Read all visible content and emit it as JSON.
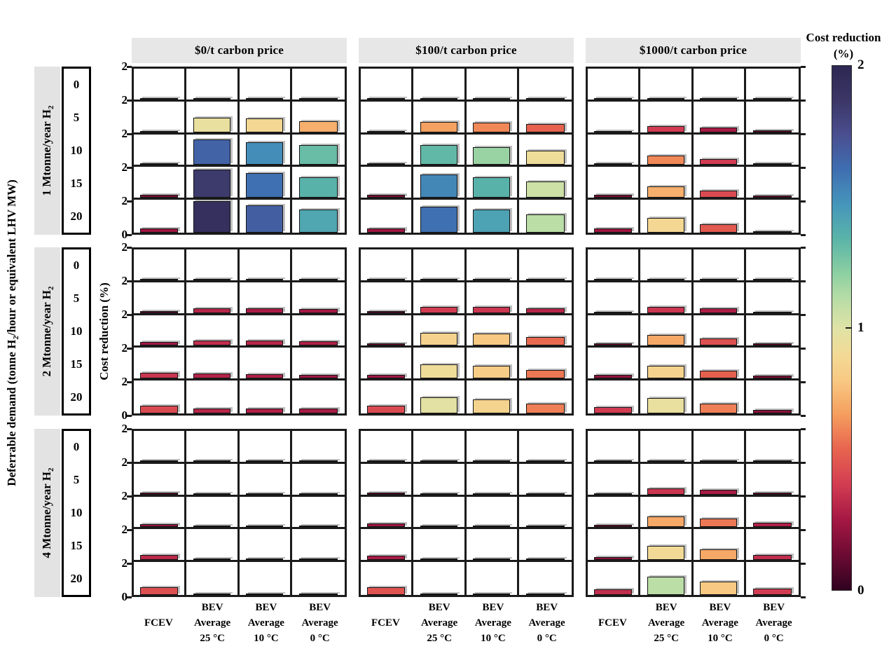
{
  "figure": {
    "outer_y_label_segments": [
      {
        "t": "Deferrable demand (tonne H"
      },
      {
        "t": "2",
        "sub": true
      },
      {
        "t": "/hour or equivalent LHV MW)"
      }
    ],
    "inner_y_label": "Cost reduction (%)",
    "col_headers": [
      "$0/t carbon price",
      "$100/t carbon price",
      "$1000/t carbon price"
    ],
    "row_headers": [
      {
        "t": "1 Mtonne/year H",
        "sub": "2"
      },
      {
        "t": "2 Mtonne/year H",
        "sub": "2"
      },
      {
        "t": "4 Mtonne/year H",
        "sub": "2"
      }
    ],
    "demand_ticks": [
      "0",
      "5",
      "10",
      "15",
      "20"
    ],
    "y_tick_top": "2",
    "y_tick_bottom": "0",
    "x_categories": [
      [
        "FCEV"
      ],
      [
        "BEV",
        "Average",
        "25 °C"
      ],
      [
        "BEV",
        "Average",
        "10 °C"
      ],
      [
        "BEV",
        "Average",
        "0 °C"
      ]
    ],
    "colorbar": {
      "title": [
        "Cost reduction",
        "(%)"
      ],
      "ticks": [
        {
          "label": "2",
          "value": 2
        },
        {
          "label": "1",
          "value": 1
        },
        {
          "label": "0",
          "value": 0
        }
      ]
    }
  },
  "colors": {
    "header_bg": "#e7e7e7",
    "strip_bg": "#e3e3e3",
    "grid": "#1b1b1b",
    "bar_edge": "#141414",
    "shadow": "#aaaaaa",
    "background": "#ffffff"
  },
  "chart_data": {
    "type": "bar",
    "title": "",
    "value_label": "Cost reduction (%)",
    "value_range": [
      0,
      2
    ],
    "grid": true,
    "legend_position": "right-colorbar",
    "row_groups": [
      "1 Mtonne/year H2",
      "2 Mtonne/year H2",
      "4 Mtonne/year H2"
    ],
    "col_groups": [
      "$0/t carbon price",
      "$100/t carbon price",
      "$1000/t carbon price"
    ],
    "deferrable_demand": [
      0,
      5,
      10,
      15,
      20
    ],
    "categories": [
      "FCEV",
      "BEV Average 25 °C",
      "BEV Average 10 °C",
      "BEV Average 0 °C"
    ],
    "colormap_stops": [
      [
        0.0,
        "#300220"
      ],
      [
        0.14,
        "#6f0b33"
      ],
      [
        0.27,
        "#a61844"
      ],
      [
        0.4,
        "#d23c52"
      ],
      [
        0.54,
        "#e8654f"
      ],
      [
        0.67,
        "#f59e5e"
      ],
      [
        0.8,
        "#f8c983"
      ],
      [
        0.9,
        "#f2da96"
      ],
      [
        1.0,
        "#dfe3a6"
      ],
      [
        1.12,
        "#b4dca6"
      ],
      [
        1.21,
        "#8ccfa2"
      ],
      [
        1.34,
        "#5ab4a8"
      ],
      [
        1.47,
        "#4596bb"
      ],
      [
        1.61,
        "#3f6db0"
      ],
      [
        1.74,
        "#4a4e8f"
      ],
      [
        1.87,
        "#3b3666"
      ],
      [
        2.0,
        "#2d2852"
      ]
    ],
    "values": [
      [
        [
          [
            0.02,
            0.02,
            0.02,
            0.02
          ],
          [
            0.08,
            0.95,
            0.88,
            0.72
          ],
          [
            0.12,
            1.65,
            1.5,
            1.3
          ],
          [
            0.18,
            1.85,
            1.6,
            1.35
          ],
          [
            0.25,
            1.93,
            1.67,
            1.4
          ]
        ],
        [
          [
            0.02,
            0.02,
            0.02,
            0.02
          ],
          [
            0.07,
            0.68,
            0.62,
            0.53
          ],
          [
            0.12,
            1.32,
            1.18,
            0.92
          ],
          [
            0.18,
            1.52,
            1.35,
            1.05
          ],
          [
            0.25,
            1.6,
            1.42,
            1.1
          ]
        ],
        [
          [
            0.02,
            0.02,
            0.02,
            0.02
          ],
          [
            0.05,
            0.4,
            0.28,
            0.12
          ],
          [
            0.1,
            0.62,
            0.4,
            0.12
          ],
          [
            0.18,
            0.72,
            0.45,
            0.15
          ],
          [
            0.25,
            0.88,
            0.5,
            0.1
          ]
        ]
      ],
      [
        [
          [
            0.02,
            0.02,
            0.02,
            0.02
          ],
          [
            0.1,
            0.32,
            0.28,
            0.27
          ],
          [
            0.26,
            0.35,
            0.32,
            0.3
          ],
          [
            0.38,
            0.31,
            0.3,
            0.25
          ],
          [
            0.45,
            0.32,
            0.3,
            0.28
          ]
        ],
        [
          [
            0.02,
            0.02,
            0.02,
            0.02
          ],
          [
            0.1,
            0.4,
            0.38,
            0.32
          ],
          [
            0.15,
            0.85,
            0.8,
            0.55
          ],
          [
            0.25,
            0.92,
            0.82,
            0.58
          ],
          [
            0.45,
            0.98,
            0.86,
            0.6
          ]
        ],
        [
          [
            0.02,
            0.02,
            0.02,
            0.02
          ],
          [
            0.05,
            0.38,
            0.29,
            0.08
          ],
          [
            0.15,
            0.7,
            0.47,
            0.14
          ],
          [
            0.22,
            0.85,
            0.52,
            0.18
          ],
          [
            0.4,
            0.95,
            0.6,
            0.2
          ]
        ]
      ],
      [
        [
          [
            0.02,
            0.02,
            0.02,
            0.02
          ],
          [
            0.12,
            0.02,
            0.02,
            0.02
          ],
          [
            0.22,
            0.02,
            0.02,
            0.02
          ],
          [
            0.33,
            0.03,
            0.02,
            0.02
          ],
          [
            0.47,
            0.05,
            0.02,
            0.02
          ]
        ],
        [
          [
            0.02,
            0.02,
            0.02,
            0.02
          ],
          [
            0.1,
            0.07,
            0.05,
            0.05
          ],
          [
            0.25,
            0.08,
            0.05,
            0.05
          ],
          [
            0.28,
            0.06,
            0.05,
            0.05
          ],
          [
            0.48,
            0.1,
            0.08,
            0.04
          ]
        ],
        [
          [
            0.02,
            0.02,
            0.02,
            0.02
          ],
          [
            0.05,
            0.38,
            0.28,
            0.12
          ],
          [
            0.15,
            0.7,
            0.58,
            0.3
          ],
          [
            0.2,
            0.9,
            0.7,
            0.35
          ],
          [
            0.35,
            1.1,
            0.8,
            0.4
          ]
        ]
      ]
    ]
  }
}
